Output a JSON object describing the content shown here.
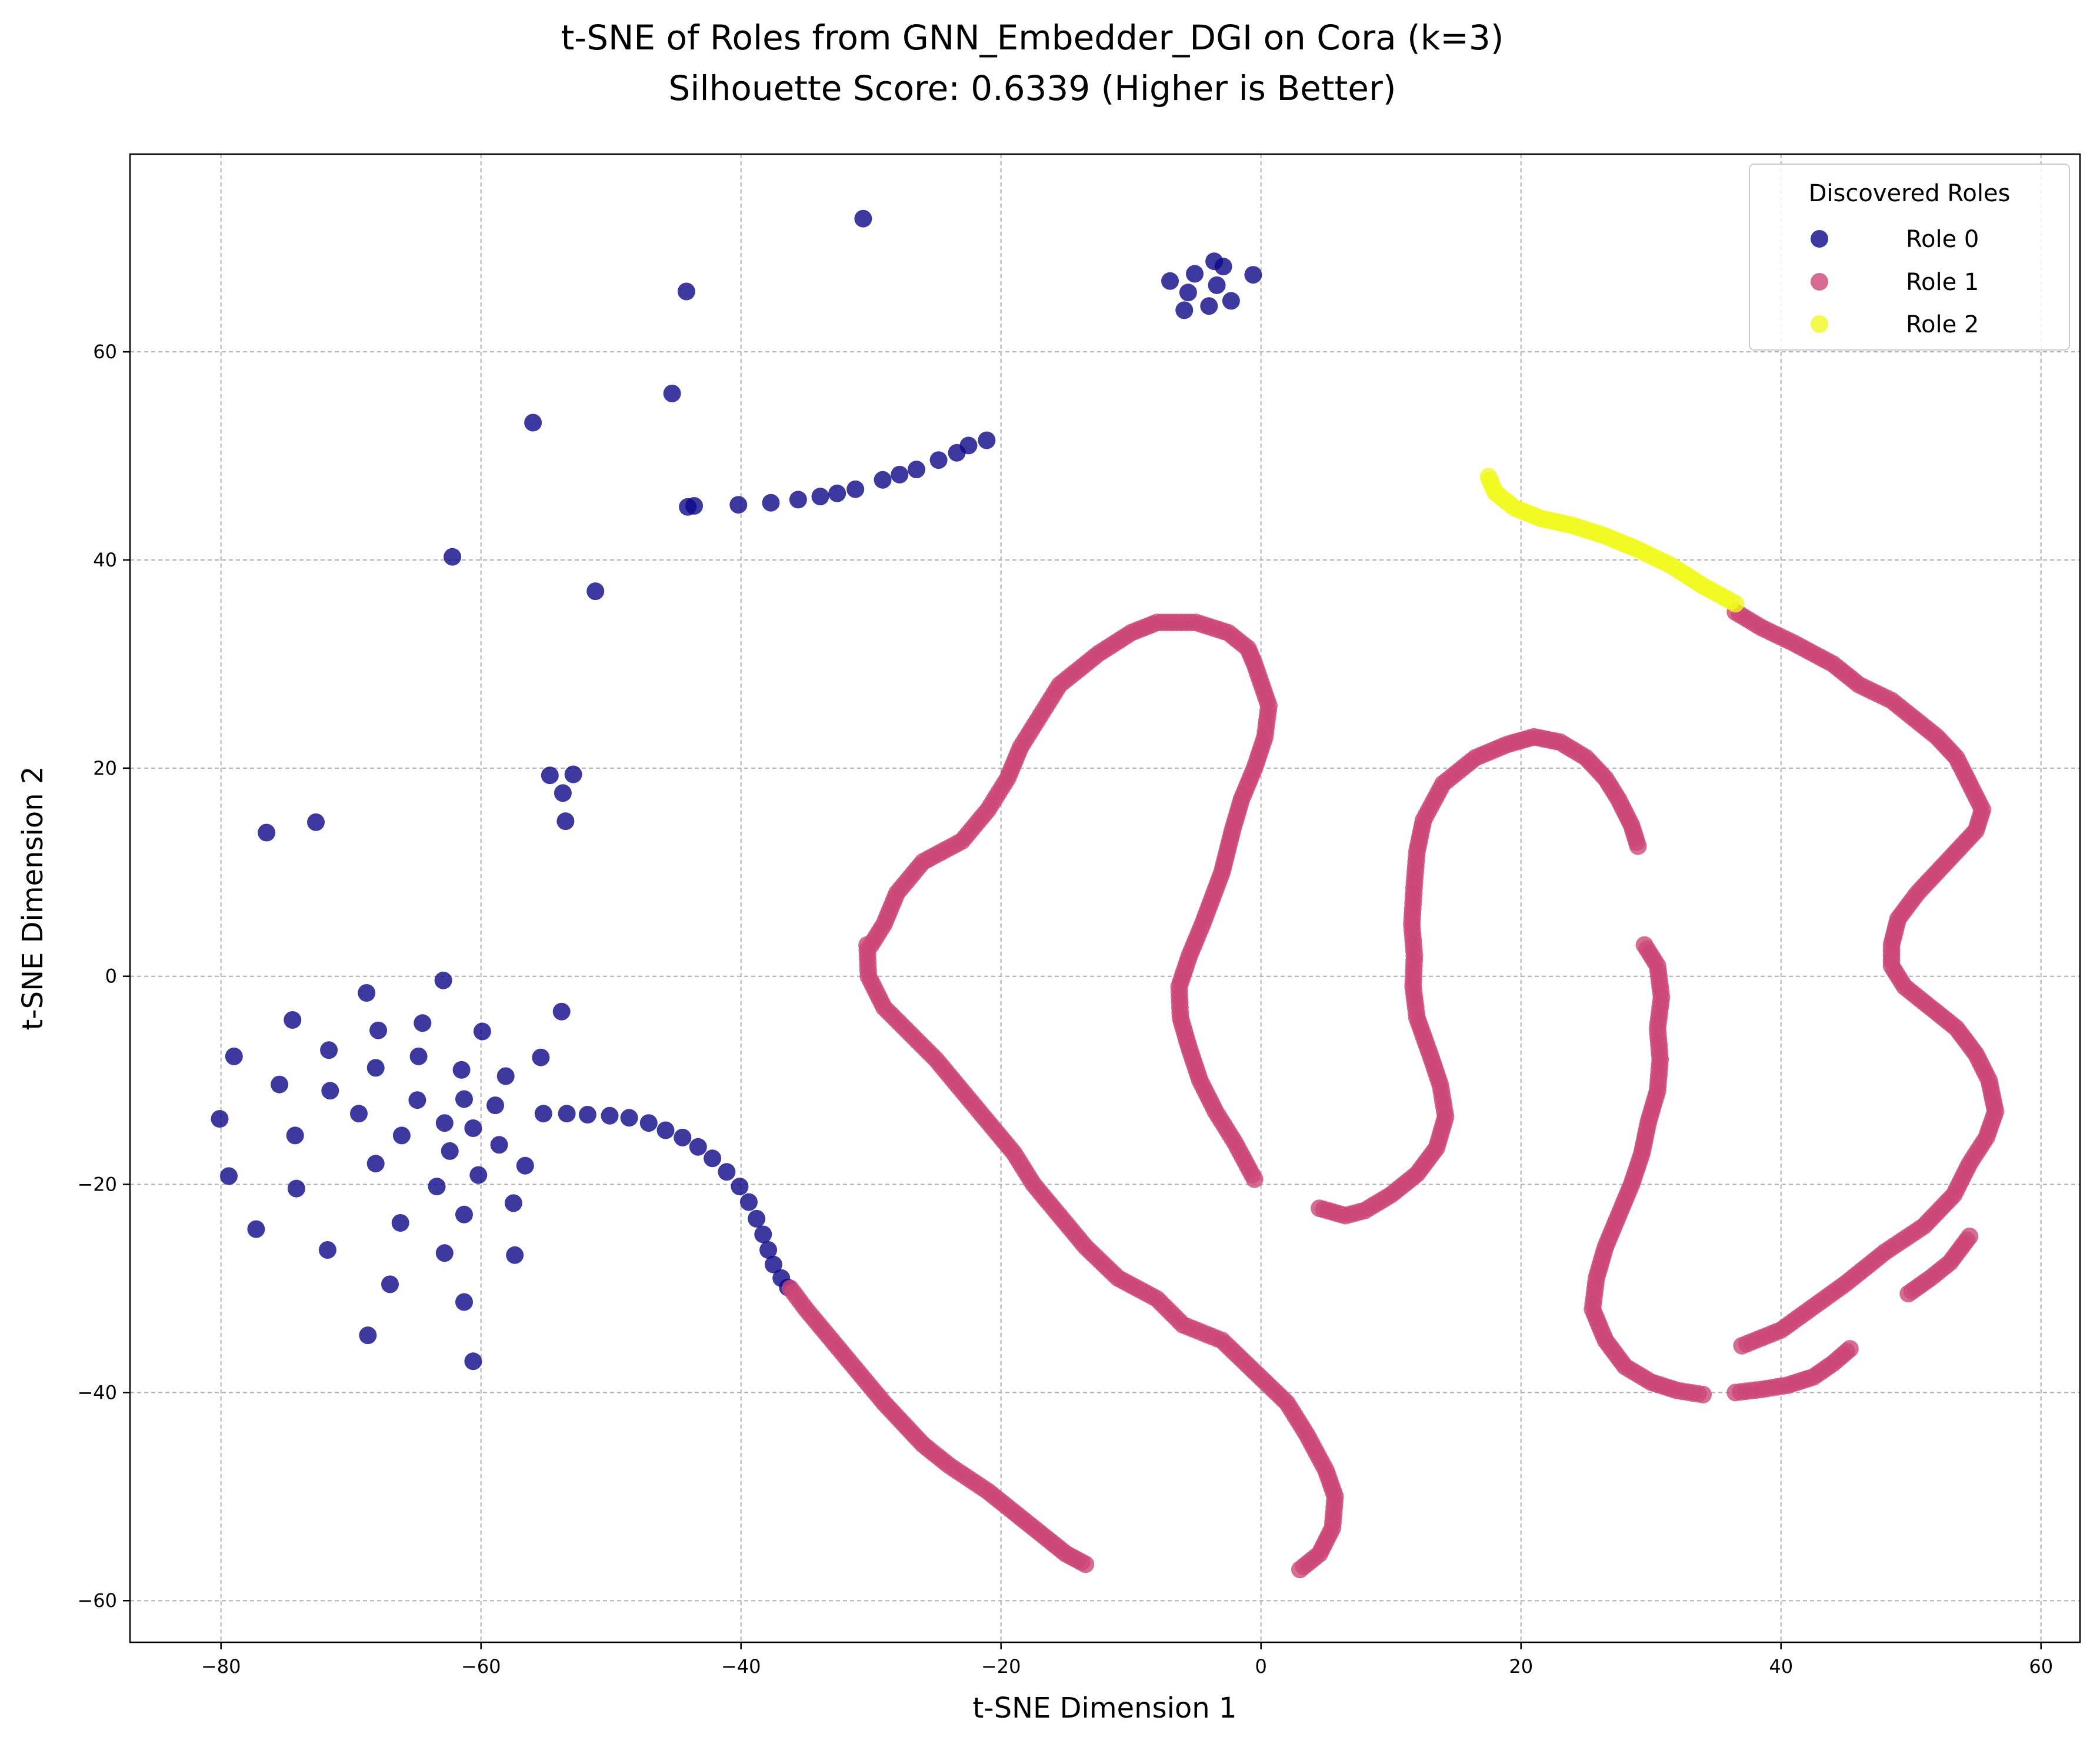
{
  "chart_data": {
    "type": "scatter",
    "title": "t-SNE of Roles from GNN_Embedder_DGI on Cora (k=3)",
    "subtitle": "Silhouette Score: 0.6339 (Higher is Better)",
    "xlabel": "t-SNE Dimension 1",
    "ylabel": "t-SNE Dimension 2",
    "xlim": [
      -87,
      63
    ],
    "ylim": [
      -64,
      79
    ],
    "xticks": [
      -80,
      -60,
      -40,
      -20,
      0,
      20,
      40,
      60
    ],
    "yticks": [
      -60,
      -40,
      -20,
      0,
      20,
      40,
      60
    ],
    "xtick_labels": [
      "−80",
      "−60",
      "−40",
      "−20",
      "0",
      "20",
      "40",
      "60"
    ],
    "ytick_labels": [
      "−60",
      "−40",
      "−20",
      "0",
      "20",
      "40",
      "60"
    ],
    "grid": true,
    "legend": {
      "title": "Discovered Roles",
      "placement": "top-right"
    },
    "series": [
      {
        "name": "Role 0",
        "color": "#0d0887",
        "points": [
          [
            -30.6,
            72.8
          ],
          [
            -44.2,
            65.8
          ],
          [
            -45.3,
            56.0
          ],
          [
            -56.0,
            53.2
          ],
          [
            -62.2,
            40.3
          ],
          [
            -51.2,
            37.0
          ],
          [
            -7,
            66.8
          ],
          [
            -5.1,
            67.5
          ],
          [
            -3.6,
            68.7
          ],
          [
            -2.9,
            68.2
          ],
          [
            -3.4,
            66.4
          ],
          [
            -5.6,
            65.7
          ],
          [
            -5.9,
            64.0
          ],
          [
            -4,
            64.4
          ],
          [
            -2.3,
            64.9
          ],
          [
            -0.6,
            67.4
          ],
          [
            -44.1,
            45.1
          ],
          [
            -43.6,
            45.2
          ],
          [
            -40.2,
            45.3
          ],
          [
            -37.7,
            45.5
          ],
          [
            -35.6,
            45.8
          ],
          [
            -33.9,
            46.1
          ],
          [
            -32.6,
            46.4
          ],
          [
            -31.2,
            46.8
          ],
          [
            -29.1,
            47.7
          ],
          [
            -27.8,
            48.2
          ],
          [
            -26.5,
            48.7
          ],
          [
            -24.8,
            49.6
          ],
          [
            -23.4,
            50.3
          ],
          [
            -22.5,
            51.0
          ],
          [
            -21.1,
            51.5
          ],
          [
            -54.7,
            19.3
          ],
          [
            -53.7,
            17.6
          ],
          [
            -52.9,
            19.4
          ],
          [
            -53.5,
            14.9
          ],
          [
            -76.5,
            13.8
          ],
          [
            -72.7,
            14.8
          ],
          [
            -62.9,
            -0.4
          ],
          [
            -74.5,
            -4.2
          ],
          [
            -68.8,
            -1.6
          ],
          [
            -64.5,
            -4.5
          ],
          [
            -71.7,
            -7.1
          ],
          [
            -67.9,
            -5.2
          ],
          [
            -59.9,
            -5.3
          ],
          [
            -79,
            -7.7
          ],
          [
            -55.4,
            -7.8
          ],
          [
            -64.8,
            -7.7
          ],
          [
            -68.1,
            -8.8
          ],
          [
            -61.5,
            -9.0
          ],
          [
            -75.5,
            -10.4
          ],
          [
            -71.6,
            -11.0
          ],
          [
            -58.1,
            -9.6
          ],
          [
            -61.3,
            -11.8
          ],
          [
            -64.9,
            -11.9
          ],
          [
            -69.4,
            -13.2
          ],
          [
            -58.9,
            -12.4
          ],
          [
            -80.1,
            -13.7
          ],
          [
            -60.6,
            -14.6
          ],
          [
            -62.8,
            -14.1
          ],
          [
            -74.3,
            -15.3
          ],
          [
            -66.1,
            -15.3
          ],
          [
            -58.6,
            -16.2
          ],
          [
            -62.4,
            -16.8
          ],
          [
            -68.1,
            -18.0
          ],
          [
            -56.6,
            -18.2
          ],
          [
            -60.2,
            -19.1
          ],
          [
            -79.4,
            -19.2
          ],
          [
            -63.4,
            -20.2
          ],
          [
            -74.2,
            -20.4
          ],
          [
            -57.5,
            -21.8
          ],
          [
            -61.3,
            -22.9
          ],
          [
            -66.2,
            -23.7
          ],
          [
            -77.3,
            -24.3
          ],
          [
            -71.8,
            -26.3
          ],
          [
            -62.8,
            -26.6
          ],
          [
            -57.4,
            -26.8
          ],
          [
            -67,
            -29.6
          ],
          [
            -61.3,
            -31.3
          ],
          [
            -68.7,
            -34.5
          ],
          [
            -60.6,
            -37.0
          ],
          [
            -53.8,
            -3.4
          ],
          [
            -55.2,
            -13.2
          ],
          [
            -53.4,
            -13.2
          ],
          [
            -51.8,
            -13.3
          ],
          [
            -50.1,
            -13.4
          ],
          [
            -48.6,
            -13.6
          ],
          [
            -47.1,
            -14.1
          ],
          [
            -45.8,
            -14.8
          ],
          [
            -44.5,
            -15.5
          ],
          [
            -43.3,
            -16.4
          ],
          [
            -42.2,
            -17.5
          ],
          [
            -41.1,
            -18.8
          ],
          [
            -40.1,
            -20.2
          ],
          [
            -39.4,
            -21.7
          ],
          [
            -38.8,
            -23.3
          ],
          [
            -38.3,
            -24.8
          ],
          [
            -37.9,
            -26.3
          ],
          [
            -37.5,
            -27.7
          ],
          [
            -36.9,
            -29.0
          ],
          [
            -36.4,
            -29.9
          ]
        ]
      },
      {
        "name": "Role 1",
        "color": "#cc4778",
        "polylines": [
          [
            [
              -36.2,
              -30
            ],
            [
              -35,
              -32
            ],
            [
              -33,
              -35
            ],
            [
              -31,
              -38
            ],
            [
              -29,
              -41
            ],
            [
              -27.5,
              -43
            ],
            [
              -26,
              -45
            ],
            [
              -24,
              -47
            ],
            [
              -21,
              -49.5
            ],
            [
              -19,
              -51.5
            ],
            [
              -17,
              -53.5
            ],
            [
              -15,
              -55.5
            ],
            [
              -13.5,
              -56.5
            ]
          ],
          [
            [
              -30,
              3
            ],
            [
              -29,
              5
            ],
            [
              -28,
              8
            ],
            [
              -26,
              11
            ],
            [
              -23,
              13
            ],
            [
              -21,
              16
            ],
            [
              -19.5,
              19
            ],
            [
              -18.5,
              22
            ],
            [
              -17,
              25
            ],
            [
              -15.5,
              28
            ],
            [
              -12.5,
              31
            ],
            [
              -10,
              33
            ],
            [
              -8,
              34
            ],
            [
              -5,
              34
            ],
            [
              -2.5,
              33
            ],
            [
              -1,
              31.5
            ],
            [
              -0.5,
              30
            ],
            [
              0.6,
              26
            ],
            [
              0.3,
              23
            ],
            [
              -0.5,
              20
            ],
            [
              -1.5,
              17
            ],
            [
              -2.2,
              14
            ],
            [
              -2.6,
              12
            ],
            [
              -3,
              10
            ],
            [
              -3.6,
              8
            ],
            [
              -4.5,
              5
            ],
            [
              -5.5,
              2
            ],
            [
              -6.3,
              -1
            ],
            [
              -6.2,
              -4
            ],
            [
              -5.5,
              -7
            ],
            [
              -4.7,
              -10
            ],
            [
              -3.5,
              -13
            ],
            [
              -2,
              -16
            ],
            [
              -0.5,
              -19.5
            ]
          ],
          [
            [
              -30.3,
              3
            ],
            [
              -30.2,
              0
            ],
            [
              -29,
              -3
            ],
            [
              -27,
              -5.5
            ],
            [
              -25,
              -8
            ],
            [
              -23,
              -11
            ],
            [
              -21,
              -14
            ],
            [
              -19,
              -17
            ],
            [
              -17.5,
              -20
            ],
            [
              -15.5,
              -23
            ],
            [
              -13.5,
              -26
            ],
            [
              -11,
              -29
            ],
            [
              -8,
              -31
            ],
            [
              -6,
              -33.5
            ],
            [
              -3,
              -35
            ],
            [
              -0.5,
              -38
            ],
            [
              2,
              -41
            ],
            [
              3.5,
              -44
            ],
            [
              5,
              -47.5
            ],
            [
              5.7,
              -50
            ],
            [
              5.5,
              -53
            ],
            [
              4.5,
              -55.5
            ],
            [
              3,
              -57
            ]
          ],
          [
            [
              4.5,
              -22.3
            ],
            [
              6.5,
              -23
            ],
            [
              8,
              -22.5
            ],
            [
              10,
              -21
            ],
            [
              12,
              -19
            ],
            [
              13.5,
              -16.5
            ],
            [
              14.2,
              -13.5
            ],
            [
              13.8,
              -10.5
            ],
            [
              13,
              -7.5
            ],
            [
              12,
              -4
            ],
            [
              11.7,
              -1
            ],
            [
              11.8,
              2
            ],
            [
              11.6,
              5
            ],
            [
              11.8,
              9
            ],
            [
              12,
              12
            ],
            [
              12.5,
              15
            ],
            [
              14,
              18.5
            ],
            [
              16.5,
              21
            ],
            [
              19,
              22.3
            ],
            [
              21,
              23
            ],
            [
              23,
              22.5
            ],
            [
              25,
              21
            ],
            [
              26.5,
              19
            ],
            [
              27.5,
              17
            ],
            [
              28.5,
              14.5
            ],
            [
              29,
              12.5
            ]
          ],
          [
            [
              29.5,
              3
            ],
            [
              30.5,
              1
            ],
            [
              30.8,
              -2
            ],
            [
              30.5,
              -5
            ],
            [
              30.7,
              -8
            ],
            [
              30.5,
              -11
            ],
            [
              29.8,
              -14
            ],
            [
              29.3,
              -17
            ],
            [
              28.5,
              -20
            ],
            [
              27.5,
              -23
            ],
            [
              26.5,
              -26
            ],
            [
              25.8,
              -29
            ],
            [
              25.5,
              -32
            ],
            [
              26.5,
              -35
            ],
            [
              28,
              -37.5
            ],
            [
              30,
              -39
            ],
            [
              32,
              -39.8
            ],
            [
              34,
              -40.2
            ]
          ],
          [
            [
              37,
              -35.5
            ],
            [
              40,
              -34
            ],
            [
              45,
              -29.5
            ],
            [
              48,
              -26.5
            ],
            [
              51,
              -24
            ],
            [
              53.3,
              -21
            ],
            [
              54.5,
              -18
            ],
            [
              55.8,
              -15.5
            ],
            [
              56.5,
              -13
            ],
            [
              56,
              -10
            ],
            [
              55,
              -7.5
            ],
            [
              53.5,
              -5
            ],
            [
              51.5,
              -3
            ],
            [
              49.5,
              -1
            ],
            [
              48.5,
              1
            ],
            [
              48.5,
              3
            ],
            [
              49,
              5.5
            ],
            [
              50.5,
              8
            ],
            [
              52,
              10
            ],
            [
              53.5,
              12
            ],
            [
              55,
              14
            ],
            [
              55.5,
              16
            ],
            [
              54.5,
              18.5
            ],
            [
              53.5,
              21
            ],
            [
              52,
              23
            ],
            [
              50,
              25
            ],
            [
              48.5,
              26.5
            ],
            [
              46,
              28
            ],
            [
              44,
              30
            ],
            [
              41,
              32
            ],
            [
              38.5,
              33.5
            ],
            [
              36.5,
              35
            ]
          ],
          [
            [
              49.8,
              -30.5
            ],
            [
              51.5,
              -29
            ],
            [
              53,
              -27.5
            ],
            [
              54.5,
              -25
            ]
          ],
          [
            [
              36.5,
              -40
            ],
            [
              38.5,
              -39.7
            ],
            [
              40.5,
              -39.3
            ],
            [
              42.5,
              -38.5
            ],
            [
              44,
              -37.2
            ],
            [
              45.3,
              -35.8
            ]
          ]
        ]
      },
      {
        "name": "Role 2",
        "color": "#f0f921",
        "polylines": [
          [
            [
              17.5,
              48
            ],
            [
              18,
              46.5
            ],
            [
              19.5,
              45
            ],
            [
              21.5,
              44
            ],
            [
              24,
              43.3
            ],
            [
              26.5,
              42.3
            ],
            [
              29,
              41
            ],
            [
              31.5,
              39.5
            ],
            [
              34,
              37.5
            ],
            [
              36.5,
              35.8
            ]
          ]
        ]
      }
    ]
  }
}
